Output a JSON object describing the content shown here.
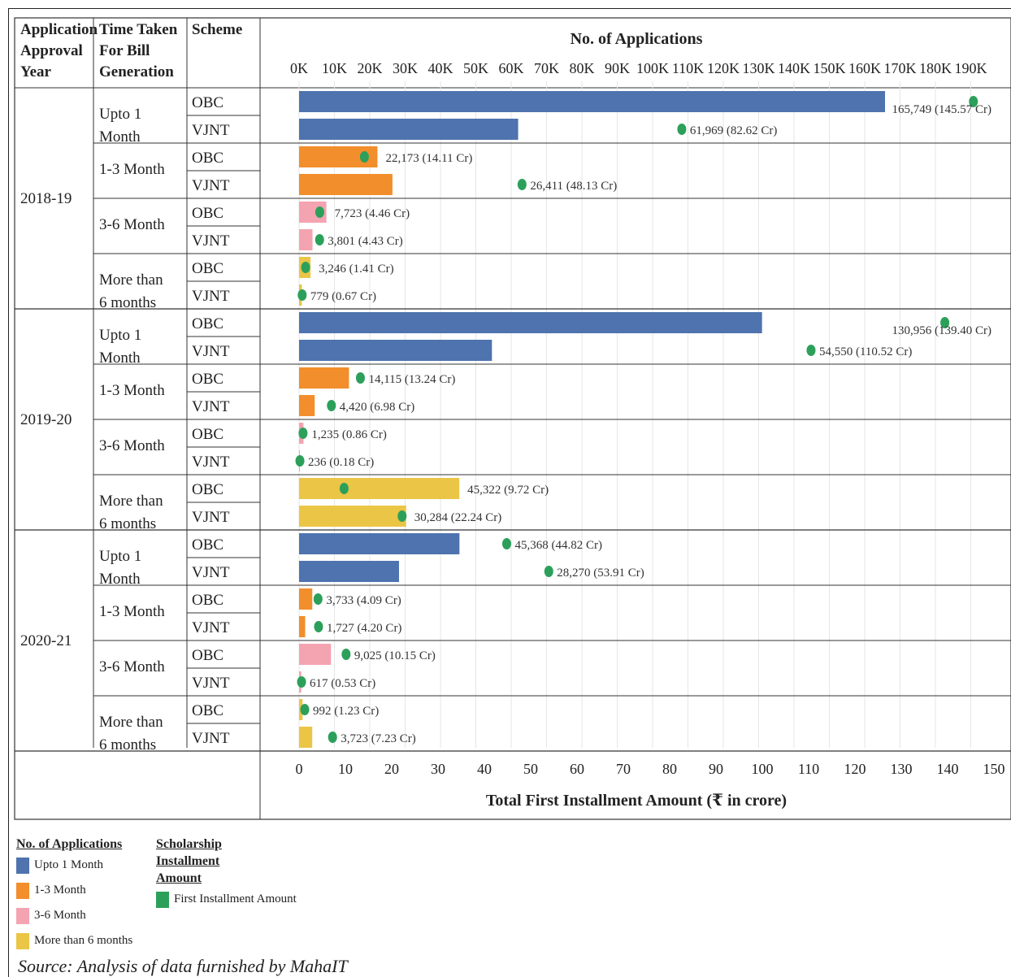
{
  "chart_data": {
    "type": "bar",
    "header": {
      "col1": "Application Approval Year",
      "col2": "Time Taken For Bill Generation",
      "col3": "Scheme",
      "top_axis_title": "No. of Applications",
      "bottom_axis_title": "Total First Installment Amount (₹ in crore)"
    },
    "top_axis_ticks": [
      "0K",
      "10K",
      "20K",
      "30K",
      "40K",
      "50K",
      "60K",
      "70K",
      "80K",
      "90K",
      "100K",
      "110K",
      "120K",
      "130K",
      "140K",
      "150K",
      "160K",
      "170K",
      "180K",
      "190K"
    ],
    "bottom_axis_ticks": [
      "0",
      "10",
      "20",
      "30",
      "40",
      "50",
      "60",
      "70",
      "80",
      "90",
      "100",
      "110",
      "120",
      "130",
      "140",
      "150"
    ],
    "top_axis_range": [
      0,
      190000
    ],
    "bottom_axis_range": [
      0,
      150
    ],
    "colors": {
      "upto1": "#4E73AE",
      "m13": "#F28E2B",
      "m36": "#F4A3B0",
      "m6plus": "#EBC546",
      "dot": "#2CA05A"
    },
    "years": [
      {
        "label": "2018-19",
        "groups": [
          {
            "label": "Upto 1 Month",
            "cat": "upto1",
            "rows": [
              {
                "scheme": "OBC",
                "apps": 165749,
                "amount": 145.57,
                "label": "165,749  (145.57 Cr)"
              },
              {
                "scheme": "VJNT",
                "apps": 61969,
                "amount": 82.62,
                "label": "61,969  (82.62 Cr)"
              }
            ]
          },
          {
            "label": "1-3 Month",
            "cat": "m13",
            "rows": [
              {
                "scheme": "OBC",
                "apps": 22173,
                "amount": 14.11,
                "label": "22,173  (14.11 Cr)"
              },
              {
                "scheme": "VJNT",
                "apps": 26411,
                "amount": 48.13,
                "label": "26,411  (48.13 Cr)"
              }
            ]
          },
          {
            "label": "3-6 Month",
            "cat": "m36",
            "rows": [
              {
                "scheme": "OBC",
                "apps": 7723,
                "amount": 4.46,
                "label": "7,723  (4.46 Cr)"
              },
              {
                "scheme": "VJNT",
                "apps": 3801,
                "amount": 4.43,
                "label": "3,801  (4.43 Cr)"
              }
            ]
          },
          {
            "label": "More than 6 months",
            "cat": "m6plus",
            "rows": [
              {
                "scheme": "OBC",
                "apps": 3246,
                "amount": 1.41,
                "label": "3,246  (1.41 Cr)"
              },
              {
                "scheme": "VJNT",
                "apps": 779,
                "amount": 0.67,
                "label": "779  (0.67 Cr)"
              }
            ]
          }
        ]
      },
      {
        "label": "2019-20",
        "groups": [
          {
            "label": "Upto 1 Month",
            "cat": "upto1",
            "rows": [
              {
                "scheme": "OBC",
                "apps": 130956,
                "amount": 139.4,
                "label": "130,956  (139.40 Cr)"
              },
              {
                "scheme": "VJNT",
                "apps": 54550,
                "amount": 110.52,
                "label": "54,550  (110.52 Cr)"
              }
            ]
          },
          {
            "label": "1-3 Month",
            "cat": "m13",
            "rows": [
              {
                "scheme": "OBC",
                "apps": 14115,
                "amount": 13.24,
                "label": "14,115  (13.24 Cr)"
              },
              {
                "scheme": "VJNT",
                "apps": 4420,
                "amount": 6.98,
                "label": "4,420  (6.98 Cr)"
              }
            ]
          },
          {
            "label": "3-6 Month",
            "cat": "m36",
            "rows": [
              {
                "scheme": "OBC",
                "apps": 1235,
                "amount": 0.86,
                "label": "1,235  (0.86 Cr)"
              },
              {
                "scheme": "VJNT",
                "apps": 236,
                "amount": 0.18,
                "label": "236  (0.18 Cr)"
              }
            ]
          },
          {
            "label": "More than 6 months",
            "cat": "m6plus",
            "rows": [
              {
                "scheme": "OBC",
                "apps": 45322,
                "amount": 9.72,
                "label": "45,322  (9.72 Cr)"
              },
              {
                "scheme": "VJNT",
                "apps": 30284,
                "amount": 22.24,
                "label": "30,284  (22.24 Cr)"
              }
            ]
          }
        ]
      },
      {
        "label": "2020-21",
        "groups": [
          {
            "label": "Upto 1 Month",
            "cat": "upto1",
            "rows": [
              {
                "scheme": "OBC",
                "apps": 45368,
                "amount": 44.82,
                "label": "45,368  (44.82 Cr)"
              },
              {
                "scheme": "VJNT",
                "apps": 28270,
                "amount": 53.91,
                "label": "28,270  (53.91 Cr)"
              }
            ]
          },
          {
            "label": "1-3 Month",
            "cat": "m13",
            "rows": [
              {
                "scheme": "OBC",
                "apps": 3733,
                "amount": 4.09,
                "label": "3,733  (4.09 Cr)"
              },
              {
                "scheme": "VJNT",
                "apps": 1727,
                "amount": 4.2,
                "label": "1,727  (4.20 Cr)"
              }
            ]
          },
          {
            "label": "3-6 Month",
            "cat": "m36",
            "rows": [
              {
                "scheme": "OBC",
                "apps": 9025,
                "amount": 10.15,
                "label": "9,025  (10.15 Cr)"
              },
              {
                "scheme": "VJNT",
                "apps": 617,
                "amount": 0.53,
                "label": "617  (0.53 Cr)"
              }
            ]
          },
          {
            "label": "More than 6 months",
            "cat": "m6plus",
            "rows": [
              {
                "scheme": "OBC",
                "apps": 992,
                "amount": 1.23,
                "label": "992  (1.23 Cr)"
              },
              {
                "scheme": "VJNT",
                "apps": 3723,
                "amount": 7.23,
                "label": "3,723  (7.23 Cr)"
              }
            ]
          }
        ]
      }
    ]
  },
  "legend": {
    "apps_title": "No. of Applications",
    "apps_items": [
      {
        "cat": "upto1",
        "label": "Upto 1 Month"
      },
      {
        "cat": "m13",
        "label": "1-3 Month"
      },
      {
        "cat": "m36",
        "label": "3-6 Month"
      },
      {
        "cat": "m6plus",
        "label": "More than 6 months"
      }
    ],
    "amount_title": "Scholarship Installment Amount",
    "amount_item": "First Installment Amount"
  },
  "source": "Source: Analysis of data furnished by MahaIT"
}
